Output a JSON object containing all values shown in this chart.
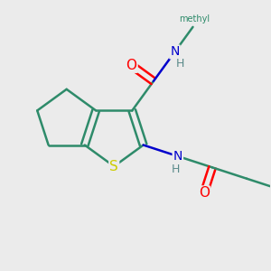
{
  "bg_color": "#ebebeb",
  "atom_colors": {
    "C": "#2e8b6a",
    "N": "#0000cc",
    "O": "#ff0000",
    "S": "#cccc00",
    "H": "#5a8a8a"
  },
  "figsize": [
    3.0,
    3.0
  ],
  "dpi": 100,
  "bond_lw": 1.8,
  "font_size": 10
}
